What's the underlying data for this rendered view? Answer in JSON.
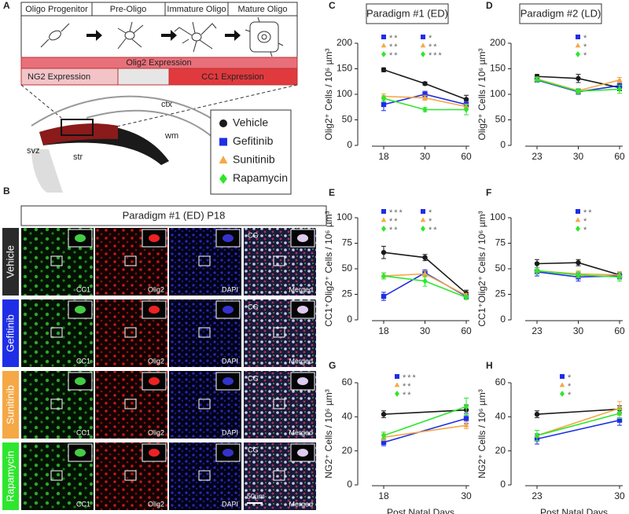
{
  "figure": {
    "panel_labels": [
      "A",
      "B",
      "C",
      "D",
      "E",
      "F",
      "G",
      "H"
    ],
    "diagram": {
      "stages": [
        "Oligo Progenitor",
        "Pre-Oligo",
        "Immature Oligo",
        "Mature Oligo"
      ],
      "olig2_bar": "Olig2 Expression",
      "ng2_bar": "NG2 Expression",
      "cc1_bar": "CC1 Expression",
      "regions": [
        "ctx",
        "wm",
        "svz",
        "str"
      ]
    },
    "microscopy": {
      "title": "Paradigm #1 (ED) P18",
      "rows": [
        {
          "label": "Vehicle",
          "color": "#2a2a2a"
        },
        {
          "label": "Gefitinib",
          "color": "#1f2ee6"
        },
        {
          "label": "Sunitinib",
          "color": "#f5a845"
        },
        {
          "label": "Rapamycin",
          "color": "#2ee62e"
        }
      ],
      "channels": [
        "CC1",
        "Olig2",
        "DAPI",
        "Merged"
      ],
      "inset_label": "CG",
      "scale_bar": "50µm"
    }
  },
  "chart_data": [
    {
      "type": "line",
      "title": "Paradigm #1 (ED)",
      "y_label": "Olig2⁺ Cells / 10⁶ µm³",
      "categories": [
        "18",
        "30",
        "60"
      ],
      "ylim": [
        0,
        200
      ],
      "yticks": [
        0,
        50,
        100,
        150,
        200
      ],
      "series": [
        {
          "name": "Vehicle",
          "color": "#1a1a1a",
          "marker": "circle",
          "values": [
            148,
            121,
            90
          ],
          "errors": [
            4,
            3,
            8
          ]
        },
        {
          "name": "Gefitinib",
          "color": "#1f2ee6",
          "marker": "square",
          "values": [
            80,
            100,
            80
          ],
          "errors": [
            12,
            6,
            6
          ]
        },
        {
          "name": "Sunitinib",
          "color": "#f5a845",
          "marker": "triangle",
          "values": [
            96,
            93,
            76
          ],
          "errors": [
            5,
            5,
            5
          ]
        },
        {
          "name": "Rapamycin",
          "color": "#2ee62e",
          "marker": "diamond",
          "values": [
            92,
            70,
            70
          ],
          "errors": [
            5,
            4,
            10
          ]
        }
      ],
      "significance": [
        [
          "**",
          "**",
          "**"
        ],
        [
          "*",
          "**",
          "***"
        ]
      ]
    },
    {
      "type": "line",
      "title": "Paradigm #2 (LD)",
      "y_label": "Olig2⁺ Cells / 10⁶ µm³",
      "categories": [
        "23",
        "30",
        "60"
      ],
      "ylim": [
        0,
        200
      ],
      "yticks": [
        0,
        50,
        100,
        150,
        200
      ],
      "series": [
        {
          "name": "Vehicle",
          "color": "#1a1a1a",
          "marker": "circle",
          "values": [
            135,
            131,
            113
          ],
          "errors": [
            4,
            8,
            6
          ]
        },
        {
          "name": "Gefitinib",
          "color": "#1f2ee6",
          "marker": "square",
          "values": [
            128,
            105,
            117
          ],
          "errors": [
            4,
            5,
            8
          ]
        },
        {
          "name": "Sunitinib",
          "color": "#f5a845",
          "marker": "triangle",
          "values": [
            130,
            107,
            128
          ],
          "errors": [
            4,
            4,
            5
          ]
        },
        {
          "name": "Rapamycin",
          "color": "#2ee62e",
          "marker": "diamond",
          "values": [
            129,
            106,
            110
          ],
          "errors": [
            4,
            5,
            8
          ]
        }
      ],
      "significance": [
        [
          "*",
          "*",
          "*"
        ]
      ]
    },
    {
      "type": "line",
      "y_label": "CC1⁺Olig2⁺ Cells / 10⁶ µm³",
      "categories": [
        "18",
        "30",
        "60"
      ],
      "ylim": [
        0,
        100
      ],
      "yticks": [
        0,
        25,
        50,
        75,
        100
      ],
      "series": [
        {
          "name": "Vehicle",
          "color": "#1a1a1a",
          "marker": "circle",
          "values": [
            66,
            61,
            26
          ],
          "errors": [
            6,
            3,
            3
          ]
        },
        {
          "name": "Gefitinib",
          "color": "#1f2ee6",
          "marker": "square",
          "values": [
            23,
            46,
            23
          ],
          "errors": [
            4,
            3,
            2
          ]
        },
        {
          "name": "Sunitinib",
          "color": "#f5a845",
          "marker": "triangle",
          "values": [
            43,
            45,
            24
          ],
          "errors": [
            3,
            3,
            2
          ]
        },
        {
          "name": "Rapamycin",
          "color": "#2ee62e",
          "marker": "diamond",
          "values": [
            43,
            38,
            22
          ],
          "errors": [
            3,
            5,
            2
          ]
        }
      ],
      "significance": [
        [
          "***",
          "**",
          "**"
        ],
        [
          "*",
          "*",
          "**"
        ]
      ]
    },
    {
      "type": "line",
      "y_label": "CC1⁺Olig2⁺ Cells / 10⁶ µm³",
      "categories": [
        "23",
        "30",
        "60"
      ],
      "ylim": [
        0,
        100
      ],
      "yticks": [
        0,
        25,
        50,
        75,
        100
      ],
      "series": [
        {
          "name": "Vehicle",
          "color": "#1a1a1a",
          "marker": "circle",
          "values": [
            55,
            56,
            44
          ],
          "errors": [
            4,
            3,
            3
          ]
        },
        {
          "name": "Gefitinib",
          "color": "#1f2ee6",
          "marker": "square",
          "values": [
            47,
            42,
            43
          ],
          "errors": [
            4,
            4,
            3
          ]
        },
        {
          "name": "Sunitinib",
          "color": "#f5a845",
          "marker": "triangle",
          "values": [
            48,
            45,
            44
          ],
          "errors": [
            3,
            3,
            3
          ]
        },
        {
          "name": "Rapamycin",
          "color": "#2ee62e",
          "marker": "diamond",
          "values": [
            48,
            44,
            42
          ],
          "errors": [
            3,
            3,
            4
          ]
        }
      ],
      "significance": [
        [
          "**",
          "*",
          "*"
        ]
      ]
    },
    {
      "type": "line",
      "y_label": "NG2⁺ Cells / 10⁶ µm³",
      "x_label": "Post Natal Days",
      "categories": [
        "18",
        "30"
      ],
      "ylim": [
        0,
        60
      ],
      "yticks": [
        0,
        20,
        40,
        60
      ],
      "series": [
        {
          "name": "Vehicle",
          "color": "#1a1a1a",
          "marker": "circle",
          "values": [
            41.5,
            44
          ],
          "errors": [
            2,
            3
          ]
        },
        {
          "name": "Gefitinib",
          "color": "#1f2ee6",
          "marker": "square",
          "values": [
            25,
            39
          ],
          "errors": [
            2,
            3
          ]
        },
        {
          "name": "Sunitinib",
          "color": "#f5a845",
          "marker": "triangle",
          "values": [
            28,
            35
          ],
          "errors": [
            2,
            2
          ]
        },
        {
          "name": "Rapamycin",
          "color": "#2ee62e",
          "marker": "diamond",
          "values": [
            29,
            46
          ],
          "errors": [
            2,
            5
          ]
        }
      ],
      "significance": [
        [
          "***",
          "**",
          "**"
        ]
      ]
    },
    {
      "type": "line",
      "y_label": "NG2⁺ Cells / 10⁶ µm³",
      "x_label": "Post Natal Days",
      "categories": [
        "23",
        "30"
      ],
      "ylim": [
        0,
        60
      ],
      "yticks": [
        0,
        20,
        40,
        60
      ],
      "series": [
        {
          "name": "Vehicle",
          "color": "#1a1a1a",
          "marker": "circle",
          "values": [
            41.5,
            44.5
          ],
          "errors": [
            2,
            2
          ]
        },
        {
          "name": "Gefitinib",
          "color": "#1f2ee6",
          "marker": "square",
          "values": [
            27,
            38
          ],
          "errors": [
            3,
            3
          ]
        },
        {
          "name": "Sunitinib",
          "color": "#f5a845",
          "marker": "triangle",
          "values": [
            29,
            45
          ],
          "errors": [
            3,
            4
          ]
        },
        {
          "name": "Rapamycin",
          "color": "#2ee62e",
          "marker": "diamond",
          "values": [
            29,
            42
          ],
          "errors": [
            3,
            3
          ]
        }
      ],
      "significance": [
        [
          "*",
          "*",
          "*"
        ]
      ]
    }
  ]
}
